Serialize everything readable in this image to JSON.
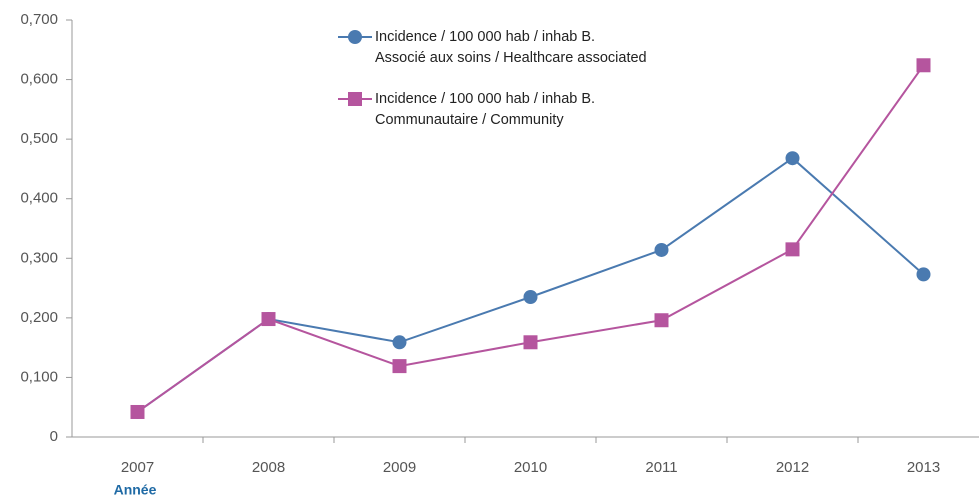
{
  "chart_data": {
    "type": "line",
    "x_label": "Année",
    "categories": [
      "2007",
      "2008",
      "2009",
      "2010",
      "2011",
      "2012",
      "2013"
    ],
    "series": [
      {
        "name": "Incidence / 100 000 hab / inhab B.\nAssocié aux soins / Healthcare associated",
        "color": "#4a7ab0",
        "marker": "circle",
        "values": [
          0.042,
          0.198,
          0.159,
          0.235,
          0.314,
          0.468,
          0.273
        ]
      },
      {
        "name": "Incidence / 100 000 hab / inhab B.\nCommunautaire / Community",
        "color": "#b5559e",
        "marker": "square",
        "values": [
          0.042,
          0.198,
          0.119,
          0.159,
          0.196,
          0.315,
          0.624
        ]
      }
    ],
    "ylim": [
      0,
      0.7
    ],
    "yticks": [
      0,
      {
        "value": 0.1,
        "label": "0,100"
      },
      {
        "value": 0.2,
        "label": "0,200"
      },
      {
        "value": 0.3,
        "label": "0,300"
      },
      {
        "value": 0.4,
        "label": "0,400"
      },
      {
        "value": 0.5,
        "label": "0,500"
      },
      {
        "value": 0.6,
        "label": "0,600"
      },
      {
        "value": 0.7,
        "label": "0,700"
      }
    ],
    "grid": false
  }
}
